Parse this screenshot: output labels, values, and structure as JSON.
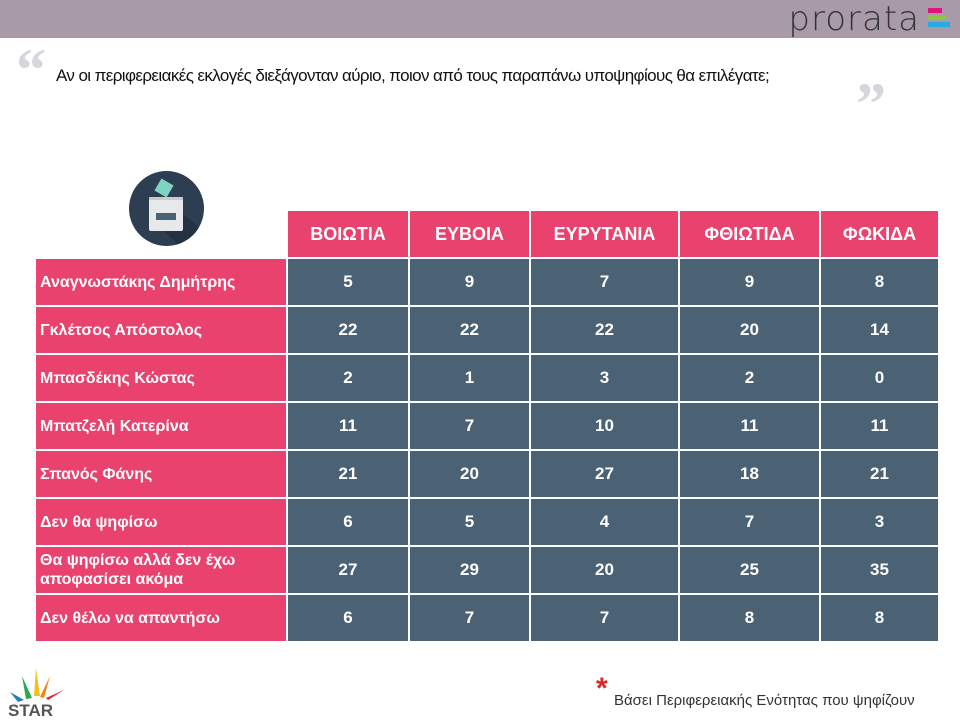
{
  "header": {
    "brand": "prorata",
    "brand_colors": [
      "#e0157a",
      "#8dc63f",
      "#29abe2"
    ]
  },
  "question": "Αν οι περιφερειακές εκλογές διεξάγονταν αύριο, ποιον από τους παραπάνω υποψηφίους θα επιλέγατε;",
  "colors": {
    "header_bg": "#e9426f",
    "cell_bg": "#4b6275",
    "topbar": "#a89aa8"
  },
  "table": {
    "columns": [
      "ΒΟΙΩΤΙΑ",
      "ΕΥΒΟΙΑ",
      "ΕΥΡΥΤΑΝΙΑ",
      "ΦΘΙΩΤΙΔΑ",
      "ΦΩΚΙΔΑ"
    ],
    "rows": [
      {
        "label": "Αναγνωστάκης Δημήτρης",
        "values": [
          "5",
          "9",
          "7",
          "9",
          "8"
        ]
      },
      {
        "label": "Γκλέτσος Απόστολος",
        "values": [
          "22",
          "22",
          "22",
          "20",
          "14"
        ]
      },
      {
        "label": "Μπασδέκης Κώστας",
        "values": [
          "2",
          "1",
          "3",
          "2",
          "0"
        ]
      },
      {
        "label": "Μπατζελή Κατερίνα",
        "values": [
          "11",
          "7",
          "10",
          "11",
          "11"
        ]
      },
      {
        "label": "Σπανός Φάνης",
        "values": [
          "21",
          "20",
          "27",
          "18",
          "21"
        ]
      },
      {
        "label": "Δεν θα ψηφίσω",
        "values": [
          "6",
          "5",
          "4",
          "7",
          "3"
        ]
      },
      {
        "label": "Θα ψηφίσω αλλά δεν έχω αποφασίσει ακόμα",
        "values": [
          "27",
          "29",
          "20",
          "25",
          "35"
        ]
      },
      {
        "label": "Δεν θέλω να απαντήσω",
        "values": [
          "6",
          "7",
          "7",
          "8",
          "8"
        ]
      }
    ]
  },
  "footer": {
    "note_mark": "*",
    "note": "Βάσει Περιφερειακής Ενότητας που ψηφίζουν",
    "logo": "STAR ΚΕΝΤΡΙΚΗΣ ΕΛΛΑΔΑΣ"
  }
}
